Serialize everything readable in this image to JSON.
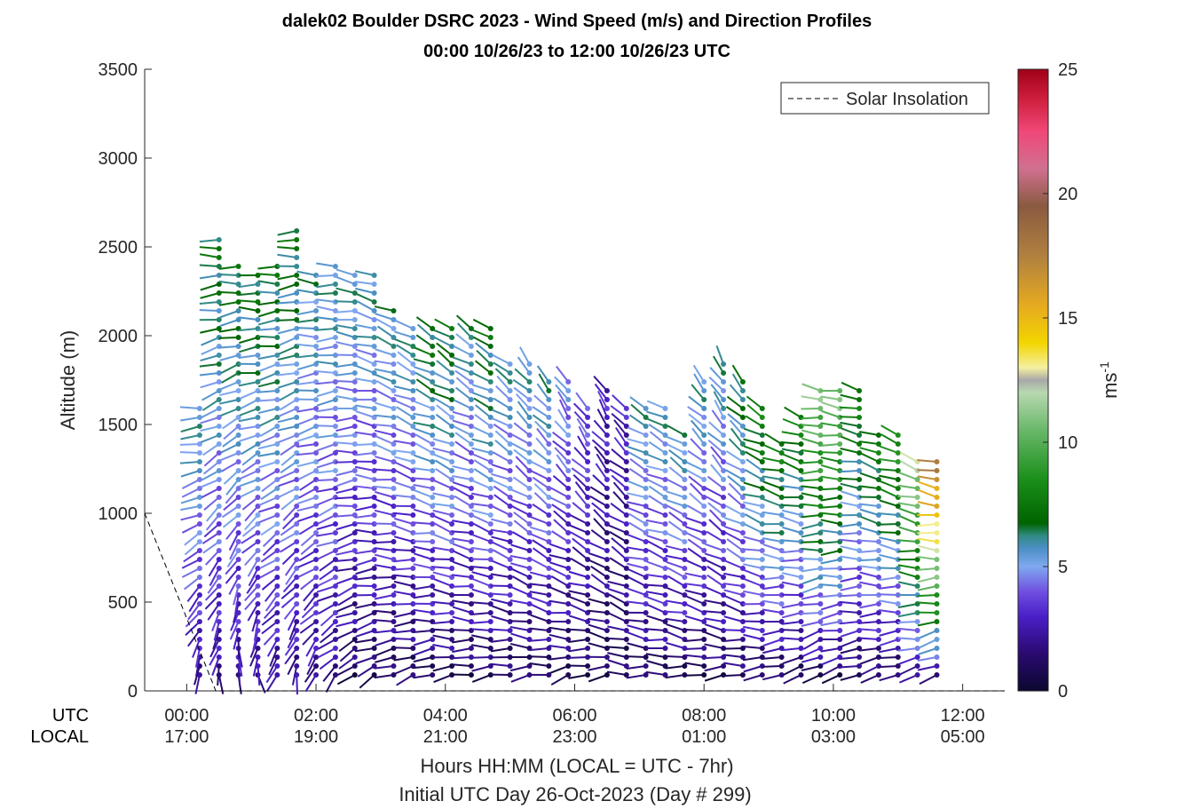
{
  "chart_data": {
    "type": "scatter",
    "title": "dalek02 Boulder DSRC 2023 - Wind Speed (m/s) and Direction Profiles",
    "subtitle": "00:00 10/26/23 to 12:00 10/26/23  UTC",
    "ylabel": "Altitude (m)",
    "xlabel": "Hours HH:MM  (LOCAL = UTC - 7hr)",
    "footnote": "Initial UTC Day 26-Oct-2023 (Day # 299)",
    "xlim": [
      -0.65,
      12.65
    ],
    "ylim": [
      0,
      3500
    ],
    "y_ticks": [
      0,
      500,
      1000,
      1500,
      2000,
      2500,
      3000,
      3500
    ],
    "x_ticks": [
      0,
      2,
      4,
      6,
      8,
      10,
      12
    ],
    "x_row_labels": [
      "UTC",
      "LOCAL"
    ],
    "x_tick_labels_utc": [
      "00:00",
      "02:00",
      "04:00",
      "06:00",
      "08:00",
      "10:00",
      "12:00"
    ],
    "x_tick_labels_local": [
      "17:00",
      "19:00",
      "21:00",
      "23:00",
      "01:00",
      "03:00",
      "05:00"
    ],
    "legend": {
      "label": "Solar Insolation",
      "placement": "top-right"
    },
    "colorbar": {
      "label": "ms",
      "label_superscript": "-1",
      "ticks": [
        0,
        5,
        10,
        15,
        20,
        25
      ],
      "range": [
        0,
        25
      ]
    },
    "solar_insolation": [
      [
        -0.65,
        1000
      ],
      [
        0.45,
        0
      ],
      [
        12.65,
        0
      ]
    ],
    "profiles": [
      {
        "t": 0.2,
        "top": 1600,
        "s_low": 2,
        "s_high": 6,
        "d_low": 180,
        "d_high": 270
      },
      {
        "t": 0.5,
        "top": 2540,
        "s_low": 2,
        "s_high": 7,
        "d_low": 180,
        "d_high": 270
      },
      {
        "t": 0.8,
        "top": 2420,
        "s_low": 2,
        "s_high": 7,
        "d_low": 160,
        "d_high": 270
      },
      {
        "t": 1.1,
        "top": 2340,
        "s_low": 2,
        "s_high": 7,
        "d_low": 170,
        "d_high": 275
      },
      {
        "t": 1.4,
        "top": 2420,
        "s_low": 2,
        "s_high": 7,
        "d_low": 200,
        "d_high": 270
      },
      {
        "t": 1.7,
        "top": 2620,
        "s_low": 2,
        "s_high": 7,
        "d_low": 190,
        "d_high": 270
      },
      {
        "t": 2.0,
        "top": 2340,
        "s_low": 2,
        "s_high": 6,
        "d_low": 200,
        "d_high": 275
      },
      {
        "t": 2.3,
        "top": 2420,
        "s_low": 2,
        "s_high": 6,
        "d_low": 220,
        "d_high": 275
      },
      {
        "t": 2.6,
        "top": 2340,
        "s_low": 1,
        "s_high": 6,
        "d_low": 230,
        "d_high": 280
      },
      {
        "t": 2.9,
        "top": 2340,
        "s_low": 1,
        "s_high": 6,
        "d_low": 240,
        "d_high": 290
      },
      {
        "t": 3.2,
        "top": 2140,
        "s_low": 1,
        "s_high": 6,
        "d_low": 250,
        "d_high": 295
      },
      {
        "t": 3.5,
        "top": 2040,
        "s_low": 1,
        "s_high": 6,
        "d_low": 250,
        "d_high": 300
      },
      {
        "t": 3.8,
        "top": 2040,
        "s_low": 1,
        "s_high": 7,
        "d_low": 250,
        "d_high": 300
      },
      {
        "t": 4.1,
        "top": 2040,
        "s_low": 1,
        "s_high": 7,
        "d_low": 260,
        "d_high": 305
      },
      {
        "t": 4.4,
        "top": 2040,
        "s_low": 1,
        "s_high": 6,
        "d_low": 260,
        "d_high": 305
      },
      {
        "t": 4.7,
        "top": 2040,
        "s_low": 1,
        "s_high": 7,
        "d_low": 260,
        "d_high": 305
      },
      {
        "t": 5.0,
        "top": 1880,
        "s_low": 1,
        "s_high": 6,
        "d_low": 260,
        "d_high": 310
      },
      {
        "t": 5.3,
        "top": 1880,
        "s_low": 1,
        "s_high": 6,
        "d_low": 260,
        "d_high": 320
      },
      {
        "t": 5.6,
        "top": 1780,
        "s_low": 1,
        "s_high": 6,
        "d_low": 260,
        "d_high": 320
      },
      {
        "t": 5.9,
        "top": 1780,
        "s_low": 1,
        "s_high": 5,
        "d_low": 250,
        "d_high": 330
      },
      {
        "t": 6.2,
        "top": 1620,
        "s_low": 1,
        "s_high": 4,
        "d_low": 250,
        "d_high": 330
      },
      {
        "t": 6.5,
        "top": 1700,
        "s_low": 1,
        "s_high": 3,
        "d_low": 260,
        "d_high": 330
      },
      {
        "t": 6.8,
        "top": 1620,
        "s_low": 1,
        "s_high": 3,
        "d_low": 270,
        "d_high": 320
      },
      {
        "t": 7.1,
        "top": 1620,
        "s_low": 1,
        "s_high": 6,
        "d_low": 270,
        "d_high": 300
      },
      {
        "t": 7.4,
        "top": 1620,
        "s_low": 1,
        "s_high": 6,
        "d_low": 270,
        "d_high": 300
      },
      {
        "t": 7.7,
        "top": 1460,
        "s_low": 1,
        "s_high": 6,
        "d_low": 270,
        "d_high": 305
      },
      {
        "t": 8.0,
        "top": 1780,
        "s_low": 1,
        "s_high": 6,
        "d_low": 260,
        "d_high": 320
      },
      {
        "t": 8.3,
        "top": 1880,
        "s_low": 1,
        "s_high": 6,
        "d_low": 260,
        "d_high": 330
      },
      {
        "t": 8.6,
        "top": 1780,
        "s_low": 1,
        "s_high": 7,
        "d_low": 260,
        "d_high": 320
      },
      {
        "t": 8.9,
        "top": 1620,
        "s_low": 1,
        "s_high": 8,
        "d_low": 260,
        "d_high": 300
      },
      {
        "t": 9.2,
        "top": 1400,
        "s_low": 1,
        "s_high": 8,
        "d_low": 250,
        "d_high": 290
      },
      {
        "t": 9.5,
        "top": 1560,
        "s_low": 1,
        "s_high": 8,
        "d_low": 250,
        "d_high": 290
      },
      {
        "t": 9.8,
        "top": 1700,
        "s_low": 1,
        "s_high": 11,
        "d_low": 240,
        "d_high": 280
      },
      {
        "t": 10.1,
        "top": 1700,
        "s_low": 1,
        "s_high": 11,
        "d_low": 250,
        "d_high": 280
      },
      {
        "t": 10.4,
        "top": 1700,
        "s_low": 1,
        "s_high": 8,
        "d_low": 250,
        "d_high": 285
      },
      {
        "t": 10.7,
        "top": 1460,
        "s_low": 1,
        "s_high": 8,
        "d_low": 250,
        "d_high": 290
      },
      {
        "t": 11.0,
        "top": 1460,
        "s_low": 1,
        "s_high": 9,
        "d_low": 250,
        "d_high": 290
      },
      {
        "t": 11.3,
        "top": 1320,
        "s_low": 2,
        "s_high": 12,
        "d_low": 250,
        "d_high": 290
      },
      {
        "t": 11.6,
        "top": 1320,
        "s_low": 2,
        "s_high": 18,
        "d_low": 240,
        "d_high": 285
      }
    ],
    "grid": false
  }
}
